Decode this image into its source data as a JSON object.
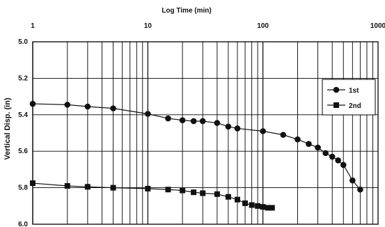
{
  "chart_data": {
    "type": "scatter",
    "title": "Log Time (min)",
    "xlabel": "Log Time (min)",
    "ylabel": "Vertical Disp. (in)",
    "x_scale": "log",
    "xlim": [
      1,
      1000
    ],
    "ylim": [
      5.0,
      6.0
    ],
    "y_inverted": true,
    "grid": true,
    "x_tick_labels": [
      "1",
      "10",
      "100",
      "1000"
    ],
    "y_tick_labels": [
      "5.0",
      "5.2",
      "5.4",
      "5.6",
      "5.8",
      "6.0"
    ],
    "legend_position": "right",
    "series": [
      {
        "name": "1st",
        "marker": "circle",
        "color": "#111111",
        "x": [
          1,
          2,
          3,
          5,
          10,
          15,
          20,
          25,
          30,
          40,
          50,
          60,
          100,
          150,
          200,
          250,
          300,
          350,
          400,
          450,
          500,
          600,
          700
        ],
        "y": [
          5.34,
          5.345,
          5.355,
          5.365,
          5.395,
          5.42,
          5.43,
          5.435,
          5.435,
          5.445,
          5.465,
          5.475,
          5.49,
          5.51,
          5.535,
          5.56,
          5.58,
          5.61,
          5.63,
          5.65,
          5.675,
          5.76,
          5.81
        ]
      },
      {
        "name": "2nd",
        "marker": "square",
        "color": "#111111",
        "x": [
          1,
          2,
          3,
          5,
          10,
          15,
          20,
          25,
          30,
          40,
          50,
          60,
          70,
          80,
          90,
          100,
          110,
          120
        ],
        "y": [
          5.775,
          5.79,
          5.795,
          5.8,
          5.805,
          5.81,
          5.815,
          5.825,
          5.83,
          5.835,
          5.85,
          5.865,
          5.885,
          5.895,
          5.9,
          5.905,
          5.91,
          5.91
        ]
      }
    ]
  }
}
